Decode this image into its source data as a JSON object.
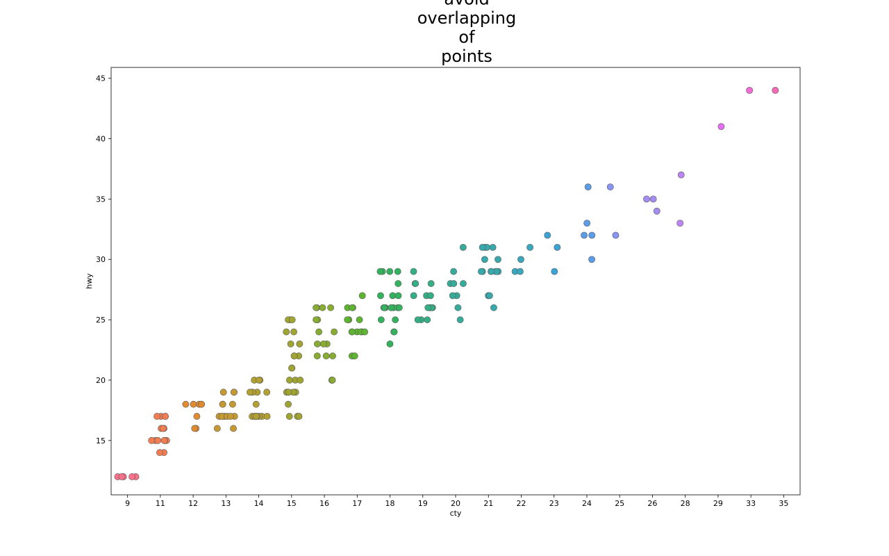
{
  "chart_data": {
    "type": "scatter",
    "title_lines": [
      "avoid",
      "overlapping",
      "of",
      "points"
    ],
    "xlabel": "cty",
    "ylabel": "hwy",
    "x_categories": [
      "9",
      "11",
      "12",
      "13",
      "14",
      "15",
      "16",
      "17",
      "18",
      "19",
      "20",
      "21",
      "22",
      "23",
      "24",
      "25",
      "26",
      "28",
      "29",
      "33",
      "35"
    ],
    "y_ticks": [
      15,
      20,
      25,
      30,
      35,
      40,
      45
    ],
    "ylim": [
      10.5,
      45.9
    ],
    "grid": false,
    "legend": "none",
    "palette": [
      "#f77189",
      "#f27d52",
      "#e08b32",
      "#c69a32",
      "#b3a032",
      "#a0a431",
      "#88ab31",
      "#5eb431",
      "#33b15c",
      "#35ae86",
      "#36ab9a",
      "#37a9ad",
      "#39a7be",
      "#3ca3d3",
      "#5a9ce8",
      "#8795f4",
      "#a48cf4",
      "#bf84f4",
      "#e56ff4",
      "#f568d6",
      "#f66bb4"
    ],
    "points": [
      {
        "c": "9",
        "hwy": [
          12,
          12,
          12,
          12,
          12
        ]
      },
      {
        "c": "11",
        "hwy": [
          17,
          17,
          17,
          17,
          16,
          16,
          16,
          15,
          15,
          15,
          15,
          15,
          15,
          14,
          14
        ]
      },
      {
        "c": "12",
        "hwy": [
          18,
          18,
          18,
          18,
          18,
          17,
          16,
          16
        ]
      },
      {
        "c": "13",
        "hwy": [
          19,
          19,
          19,
          18,
          18,
          18,
          17,
          17,
          17,
          17,
          17,
          17,
          17,
          16,
          16
        ]
      },
      {
        "c": "14",
        "hwy": [
          20,
          20,
          20,
          19,
          19,
          19,
          19,
          18,
          17,
          17,
          17,
          17,
          17,
          17,
          17,
          17
        ]
      },
      {
        "c": "15",
        "hwy": [
          25,
          25,
          25,
          24,
          24,
          23,
          23,
          22,
          22,
          22,
          21,
          21,
          20,
          20,
          20,
          19,
          19,
          19,
          19,
          18,
          17,
          17,
          17
        ]
      },
      {
        "c": "16",
        "hwy": [
          26,
          26,
          26,
          26,
          25,
          25,
          24,
          24,
          23,
          23,
          23,
          22,
          22,
          22,
          20,
          20,
          20,
          20
        ]
      },
      {
        "c": "17",
        "hwy": [
          27,
          26,
          26,
          26,
          25,
          25,
          25,
          24,
          24,
          24,
          24,
          24,
          24,
          22,
          22
        ]
      },
      {
        "c": "18",
        "hwy": [
          29,
          29,
          29,
          29,
          28,
          27,
          27,
          27,
          26,
          26,
          26,
          26,
          26,
          26,
          26,
          26,
          26,
          25,
          25,
          24,
          24,
          23
        ]
      },
      {
        "c": "19",
        "hwy": [
          29,
          28,
          28,
          28,
          27,
          27,
          27,
          26,
          26,
          26,
          26,
          26,
          25,
          25,
          25
        ]
      },
      {
        "c": "20",
        "hwy": [
          31,
          29,
          28,
          28,
          28,
          27,
          27,
          26,
          25
        ]
      },
      {
        "c": "21",
        "hwy": [
          31,
          31,
          31,
          31,
          30,
          30,
          29,
          29,
          29,
          29,
          29,
          29,
          29,
          27,
          27,
          26
        ]
      },
      {
        "c": "22",
        "hwy": [
          31,
          30,
          29,
          29
        ]
      },
      {
        "c": "23",
        "hwy": [
          32,
          31,
          29
        ]
      },
      {
        "c": "24",
        "hwy": [
          36,
          33,
          32,
          32,
          30
        ]
      },
      {
        "c": "25",
        "hwy": [
          36,
          32
        ]
      },
      {
        "c": "26",
        "hwy": [
          35,
          35,
          34
        ]
      },
      {
        "c": "28",
        "hwy": [
          37,
          33
        ]
      },
      {
        "c": "29",
        "hwy": [
          41
        ]
      },
      {
        "c": "33",
        "hwy": [
          44
        ]
      },
      {
        "c": "35",
        "hwy": [
          44
        ]
      }
    ]
  }
}
